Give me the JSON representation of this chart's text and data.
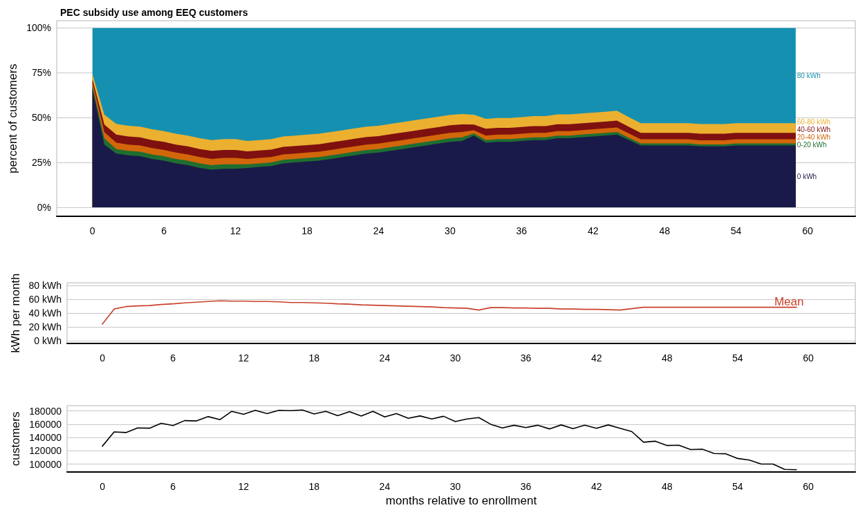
{
  "chart_data": [
    {
      "type": "area",
      "title": "PEC subsidy use among EEQ customers",
      "ylabel": "percent of customers",
      "stacked": true,
      "grid": "y",
      "x": [
        0,
        1,
        2,
        3,
        4,
        5,
        6,
        7,
        8,
        9,
        10,
        11,
        12,
        13,
        14,
        15,
        16,
        17,
        18,
        19,
        20,
        21,
        22,
        23,
        24,
        25,
        26,
        27,
        28,
        29,
        30,
        31,
        32,
        33,
        34,
        35,
        36,
        37,
        38,
        39,
        40,
        41,
        42,
        43,
        44,
        45,
        46,
        47,
        48,
        49,
        50,
        51,
        52,
        53,
        54,
        55,
        56,
        57,
        58,
        59
      ],
      "xlim": [
        -3,
        64
      ],
      "xticks": [
        0,
        6,
        12,
        18,
        24,
        30,
        36,
        42,
        48,
        54,
        60
      ],
      "ylim": [
        -5,
        104
      ],
      "yticks": [
        {
          "value": 0,
          "label": "0%"
        },
        {
          "value": 25,
          "label": "25%"
        },
        {
          "value": 50,
          "label": "50%"
        },
        {
          "value": 75,
          "label": "75%"
        },
        {
          "value": 100,
          "label": "100%"
        }
      ],
      "series": [
        {
          "name": "0 kWh",
          "color": "#1a1a4a",
          "values": [
            66,
            35,
            30,
            29,
            28.5,
            27,
            26,
            24.5,
            23.5,
            22,
            21,
            21.5,
            21.5,
            22,
            22.5,
            23,
            24.5,
            25,
            25.5,
            26,
            27,
            28,
            29,
            30,
            30.5,
            31.5,
            32.5,
            33.5,
            34.5,
            35.5,
            36.5,
            37,
            40,
            36,
            36.5,
            36.5,
            37,
            37.5,
            37.5,
            38.5,
            38.5,
            39,
            39.5,
            40,
            40.5,
            37.5,
            34.5,
            34.5,
            34.5,
            34.5,
            34.5,
            34,
            34,
            34,
            34.5,
            34.5,
            34.5,
            34.5,
            34.5,
            34.5
          ]
        },
        {
          "name": "0-20 kWh",
          "color": "#1f6e30",
          "values": [
            1.8,
            3.3,
            2.5,
            2.5,
            2.5,
            2.5,
            2.5,
            2.5,
            2.5,
            2.5,
            2.5,
            2.5,
            2.5,
            2,
            2,
            2,
            2,
            2,
            2,
            2,
            2,
            2,
            2,
            2,
            2,
            2,
            2,
            2,
            2,
            2,
            2,
            2,
            1.2,
            1.5,
            1.5,
            1.5,
            1.5,
            1.5,
            1.5,
            1.5,
            1.5,
            1.5,
            1.5,
            1.5,
            1.5,
            1.3,
            1.1,
            1.1,
            1.1,
            1.1,
            1.1,
            1.1,
            1.1,
            1.1,
            1.1,
            1.1,
            1.1,
            1.1,
            1.1,
            1.1
          ]
        },
        {
          "name": "20-40 kWh",
          "color": "#d2660a",
          "values": [
            1.8,
            3.6,
            3.5,
            3.5,
            3.5,
            3.5,
            3.5,
            3.5,
            3.5,
            3.5,
            3.5,
            3.5,
            3.5,
            3,
            3,
            3,
            3,
            3,
            3,
            3,
            3,
            3,
            3,
            3,
            3,
            3,
            3,
            3,
            3,
            3,
            3,
            3,
            1.8,
            2.5,
            2.5,
            2.5,
            2.5,
            2.5,
            2.5,
            2.5,
            2.5,
            2.5,
            2.5,
            2.5,
            2.5,
            2.4,
            2.3,
            2.3,
            2.3,
            2.3,
            2.3,
            2.3,
            2.3,
            2.3,
            2.3,
            2.3,
            2.3,
            2.3,
            2.3,
            2.3
          ]
        },
        {
          "name": "40-60 kWh",
          "color": "#7f1010",
          "values": [
            1.9,
            4.2,
            4.5,
            4.5,
            4.5,
            4.5,
            4.5,
            4.5,
            4.5,
            4.5,
            4.5,
            4.5,
            4.5,
            4.2,
            4.2,
            4.2,
            4.2,
            4.2,
            4.2,
            4.2,
            4.2,
            4.2,
            4.2,
            4.2,
            4.2,
            4.2,
            4.2,
            4.2,
            4.2,
            4.2,
            4.2,
            4.2,
            3.1,
            3.8,
            3.8,
            3.8,
            3.8,
            3.8,
            3.8,
            3.8,
            3.8,
            3.8,
            3.8,
            3.8,
            3.8,
            3.7,
            3.6,
            3.6,
            3.6,
            3.6,
            3.6,
            3.6,
            3.6,
            3.6,
            3.6,
            3.6,
            3.6,
            3.6,
            3.6,
            3.6
          ]
        },
        {
          "name": "60-80 kWh",
          "color": "#ebb030",
          "values": [
            2.7,
            5.5,
            6,
            6,
            6,
            6,
            6,
            6,
            6,
            6,
            6,
            6,
            6,
            5.8,
            5.8,
            5.8,
            5.8,
            5.8,
            5.8,
            5.8,
            5.8,
            5.8,
            5.8,
            5.8,
            5.8,
            5.8,
            5.8,
            5.8,
            5.8,
            5.8,
            5.8,
            5.8,
            5.5,
            5.5,
            5.5,
            5.5,
            5.5,
            5.5,
            5.5,
            5.5,
            5.5,
            5.5,
            5.5,
            5.5,
            5.5,
            5.4,
            5.4,
            5.4,
            5.4,
            5.4,
            5.4,
            5.4,
            5.4,
            5.4,
            5.4,
            5.4,
            5.4,
            5.4,
            5.4,
            5.4
          ]
        },
        {
          "name": "80 kWh",
          "color": "#1690b0",
          "values": [
            25.8,
            48.4,
            53.5,
            54.5,
            55,
            56.5,
            57.5,
            59,
            60,
            61.5,
            62.5,
            62,
            62,
            63,
            62.5,
            62,
            60.5,
            60,
            59.5,
            59,
            58,
            57,
            56,
            55,
            54.5,
            53.5,
            52.5,
            51.5,
            50.5,
            49.5,
            48.5,
            48,
            48.4,
            50.7,
            50.2,
            50.2,
            49.7,
            49.2,
            49.2,
            48.2,
            48.2,
            47.7,
            47.2,
            46.7,
            46.2,
            49.7,
            53.1,
            53.1,
            53.1,
            53.1,
            53.1,
            53.6,
            53.6,
            53.6,
            53.1,
            53.1,
            53.1,
            53.1,
            53.1,
            53.1
          ]
        }
      ]
    },
    {
      "type": "line",
      "ylabel": "kWh per month",
      "grid": "y",
      "marker": "none",
      "line_style": "solid",
      "x": [
        0,
        1,
        2,
        3,
        4,
        5,
        6,
        7,
        8,
        9,
        10,
        11,
        12,
        13,
        14,
        15,
        16,
        17,
        18,
        19,
        20,
        21,
        22,
        23,
        24,
        25,
        26,
        27,
        28,
        29,
        30,
        31,
        32,
        33,
        34,
        35,
        36,
        37,
        38,
        39,
        40,
        41,
        42,
        43,
        44,
        45,
        46,
        47,
        48,
        49,
        50,
        51,
        52,
        53,
        54,
        55,
        56,
        57,
        58,
        59
      ],
      "xlim": [
        -3,
        64
      ],
      "xticks": [
        0,
        6,
        12,
        18,
        24,
        30,
        36,
        42,
        48,
        54,
        60
      ],
      "ylim": [
        -4,
        84
      ],
      "yticks": [
        {
          "value": 0,
          "label": "0 kWh"
        },
        {
          "value": 20,
          "label": "20 kWh"
        },
        {
          "value": 40,
          "label": "40 kWh"
        },
        {
          "value": 60,
          "label": "60 kWh"
        },
        {
          "value": 80,
          "label": "80 kWh"
        }
      ],
      "series": [
        {
          "name": "Mean",
          "color": "#c8402a",
          "values": [
            24,
            46,
            49.5,
            50.5,
            51,
            52.5,
            53.5,
            55,
            56,
            57,
            58,
            57.5,
            57.5,
            57,
            57,
            56.5,
            55.5,
            55.5,
            55,
            54.5,
            53.5,
            53,
            52,
            51.5,
            51,
            50.5,
            50,
            49.5,
            49,
            48,
            47.5,
            47,
            44.5,
            48,
            48,
            47.5,
            47.5,
            47,
            47,
            46,
            46,
            45.5,
            45.5,
            45,
            44.5,
            46.5,
            48.5,
            48.5,
            48.5,
            48.5,
            48.5,
            48.5,
            48.5,
            48.5,
            48.5,
            48.5,
            48.5,
            48.5,
            48.5,
            48.5
          ]
        }
      ]
    },
    {
      "type": "line",
      "ylabel": "customers",
      "xlabel": "months relative to enrollment",
      "grid": "y",
      "marker": "none",
      "line_style": "solid",
      "x": [
        0,
        1,
        2,
        3,
        4,
        5,
        6,
        7,
        8,
        9,
        10,
        11,
        12,
        13,
        14,
        15,
        16,
        17,
        18,
        19,
        20,
        21,
        22,
        23,
        24,
        25,
        26,
        27,
        28,
        29,
        30,
        31,
        32,
        33,
        34,
        35,
        36,
        37,
        38,
        39,
        40,
        41,
        42,
        43,
        44,
        45,
        46,
        47,
        48,
        49,
        50,
        51,
        52,
        53,
        54,
        55,
        56,
        57,
        58,
        59
      ],
      "xlim": [
        -3,
        64
      ],
      "xticks": [
        0,
        6,
        12,
        18,
        24,
        30,
        36,
        42,
        48,
        54,
        60
      ],
      "ylim": [
        88000,
        188000
      ],
      "yticks": [
        100000,
        120000,
        140000,
        160000,
        180000
      ],
      "series": [
        {
          "color": "#000000",
          "values": [
            127000,
            148500,
            147500,
            154500,
            154000,
            161500,
            158000,
            165500,
            165000,
            171500,
            167000,
            179500,
            175000,
            181000,
            176000,
            181000,
            180500,
            181500,
            175500,
            179500,
            173000,
            179000,
            172500,
            179500,
            171000,
            176000,
            169000,
            172500,
            168000,
            172000,
            164000,
            168000,
            170000,
            160000,
            154500,
            158500,
            155000,
            158500,
            153000,
            159000,
            153500,
            158500,
            154000,
            159000,
            154000,
            149000,
            133000,
            134500,
            128000,
            128500,
            122000,
            122500,
            116000,
            115500,
            108500,
            106000,
            100000,
            100000,
            92000,
            91500
          ]
        }
      ]
    }
  ]
}
